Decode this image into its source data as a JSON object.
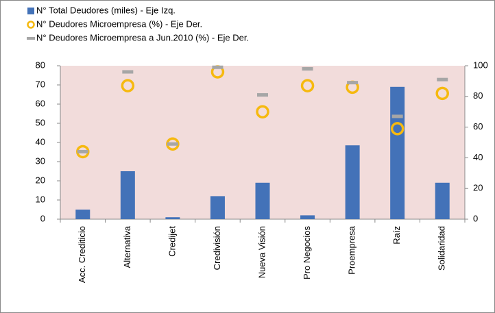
{
  "chart_data": {
    "type": "bar",
    "categories": [
      "Acc. Crediticio",
      "Alternativa",
      "Credijet",
      "Credivisión",
      "Nueva Visión",
      "Pro Negocios",
      "Proempresa",
      "Raíz",
      "Solidaridad"
    ],
    "series": [
      {
        "name": "N° Total Deudores (miles) - Eje Izq.",
        "type": "bar",
        "color": "#4372b8",
        "axis": "y",
        "values": [
          5,
          25,
          1,
          12,
          19,
          2,
          38.5,
          69,
          19
        ]
      },
      {
        "name": "N° Deudores Microempresa (%) - Eje Der.",
        "type": "scatter",
        "marker": "circle",
        "color": "#f6b90f",
        "axis": "y2",
        "values": [
          44,
          87,
          49,
          96,
          70,
          87,
          86,
          59,
          82
        ]
      },
      {
        "name": "N° Deudores Microempresa a Jun.2010 (%) - Eje Der.",
        "type": "scatter",
        "marker": "dash",
        "color": "#a6a6a6",
        "axis": "y2",
        "values": [
          44,
          96,
          49,
          99,
          81,
          98,
          89,
          67,
          91
        ]
      }
    ],
    "ylim": [
      0,
      80
    ],
    "yticks": [
      0,
      10,
      20,
      30,
      40,
      50,
      60,
      70,
      80
    ],
    "y2lim": [
      0,
      100
    ],
    "y2ticks": [
      0,
      20,
      40,
      60,
      80,
      100
    ],
    "plot_background": "#f2dcdb",
    "legend": "top-left"
  }
}
